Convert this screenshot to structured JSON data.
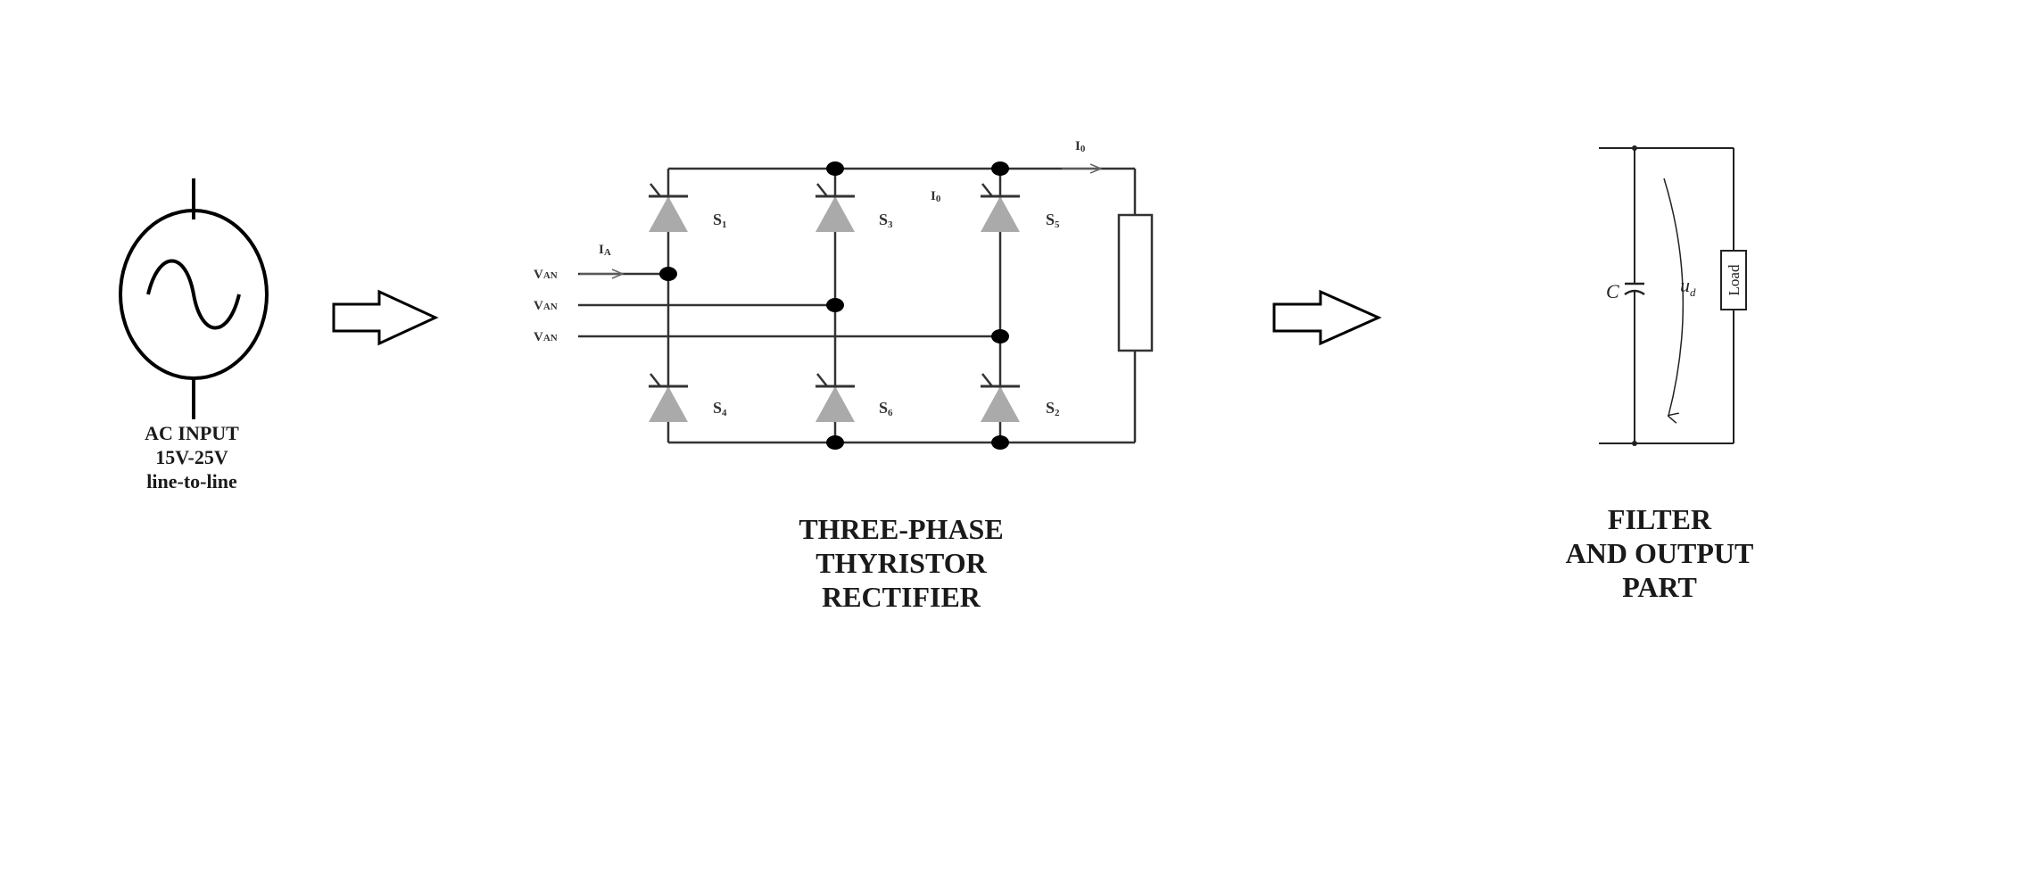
{
  "ac_input": {
    "lines": [
      "AC INPUT",
      "15V-25V",
      "line-to-line"
    ]
  },
  "rectifier": {
    "caption": [
      "THREE-PHASE",
      "THYRISTOR",
      "RECTIFIER"
    ],
    "switches": {
      "s1": {
        "main": "S",
        "sub": "1"
      },
      "s3": {
        "main": "S",
        "sub": "3"
      },
      "s5": {
        "main": "S",
        "sub": "5"
      },
      "s4": {
        "main": "S",
        "sub": "4"
      },
      "s6": {
        "main": "S",
        "sub": "6"
      },
      "s2": {
        "main": "S",
        "sub": "2"
      }
    },
    "inputs": [
      {
        "main": "V",
        "sub": "AN"
      },
      {
        "main": "V",
        "sub": "AN"
      },
      {
        "main": "V",
        "sub": "AN"
      }
    ],
    "current_input": {
      "main": "I",
      "sub": "A"
    },
    "current_output": {
      "main": "I",
      "sub": "0"
    },
    "current_mid": {
      "main": "I",
      "sub": "0"
    }
  },
  "filter": {
    "caption": [
      "FILTER",
      "AND OUTPUT",
      "PART"
    ],
    "capacitor_label": "C",
    "voltage_label": {
      "main": "u",
      "sub": "d"
    },
    "load_label": "Load"
  },
  "colors": {
    "line": "#333333",
    "thyristor": "#aaaaaa",
    "node": "#000000"
  }
}
